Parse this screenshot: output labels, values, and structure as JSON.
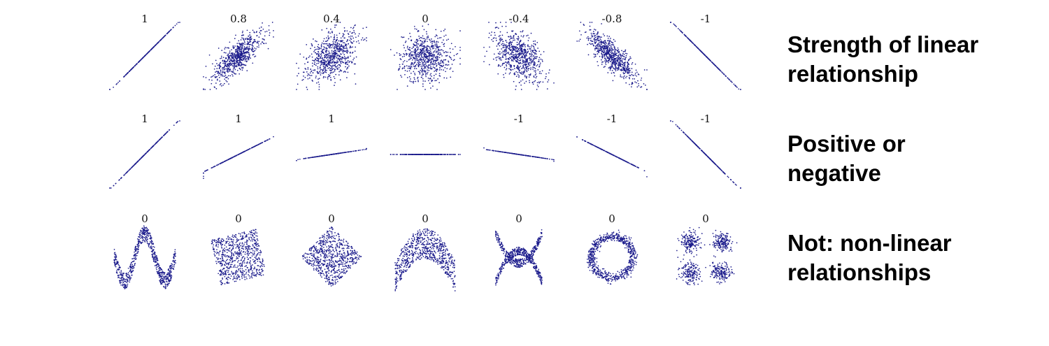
{
  "chart_data": {
    "type": "scatter",
    "point_color": "#1c1c8c",
    "rows": [
      {
        "caption": [
          "Strength of linear",
          "relationship"
        ],
        "panels": [
          {
            "label": "1",
            "pattern": "linear",
            "r": 1
          },
          {
            "label": "0.8",
            "pattern": "linear",
            "r": 0.8
          },
          {
            "label": "0.4",
            "pattern": "linear",
            "r": 0.4
          },
          {
            "label": "0",
            "pattern": "linear",
            "r": 0
          },
          {
            "label": "-0.4",
            "pattern": "linear",
            "r": -0.4
          },
          {
            "label": "-0.8",
            "pattern": "linear",
            "r": -0.8
          },
          {
            "label": "-1",
            "pattern": "linear",
            "r": -1
          }
        ]
      },
      {
        "caption": [
          "Positive or",
          "negative"
        ],
        "panels": [
          {
            "label": "1",
            "pattern": "line",
            "slope": 1
          },
          {
            "label": "1",
            "pattern": "line",
            "slope": 0.5
          },
          {
            "label": "1",
            "pattern": "line",
            "slope": 0.15
          },
          {
            "label": "",
            "pattern": "line",
            "slope": 0
          },
          {
            "label": "-1",
            "pattern": "line",
            "slope": -0.15
          },
          {
            "label": "-1",
            "pattern": "line",
            "slope": -0.5
          },
          {
            "label": "-1",
            "pattern": "line",
            "slope": -1
          }
        ]
      },
      {
        "caption": [
          "Not: non-linear",
          "relationships"
        ],
        "panels": [
          {
            "label": "0",
            "pattern": "wave"
          },
          {
            "label": "0",
            "pattern": "rotated-square"
          },
          {
            "label": "0",
            "pattern": "diamond"
          },
          {
            "label": "0",
            "pattern": "parabola"
          },
          {
            "label": "0",
            "pattern": "cross-parabolas"
          },
          {
            "label": "0",
            "pattern": "ring"
          },
          {
            "label": "0",
            "pattern": "four-clusters"
          }
        ]
      }
    ]
  }
}
